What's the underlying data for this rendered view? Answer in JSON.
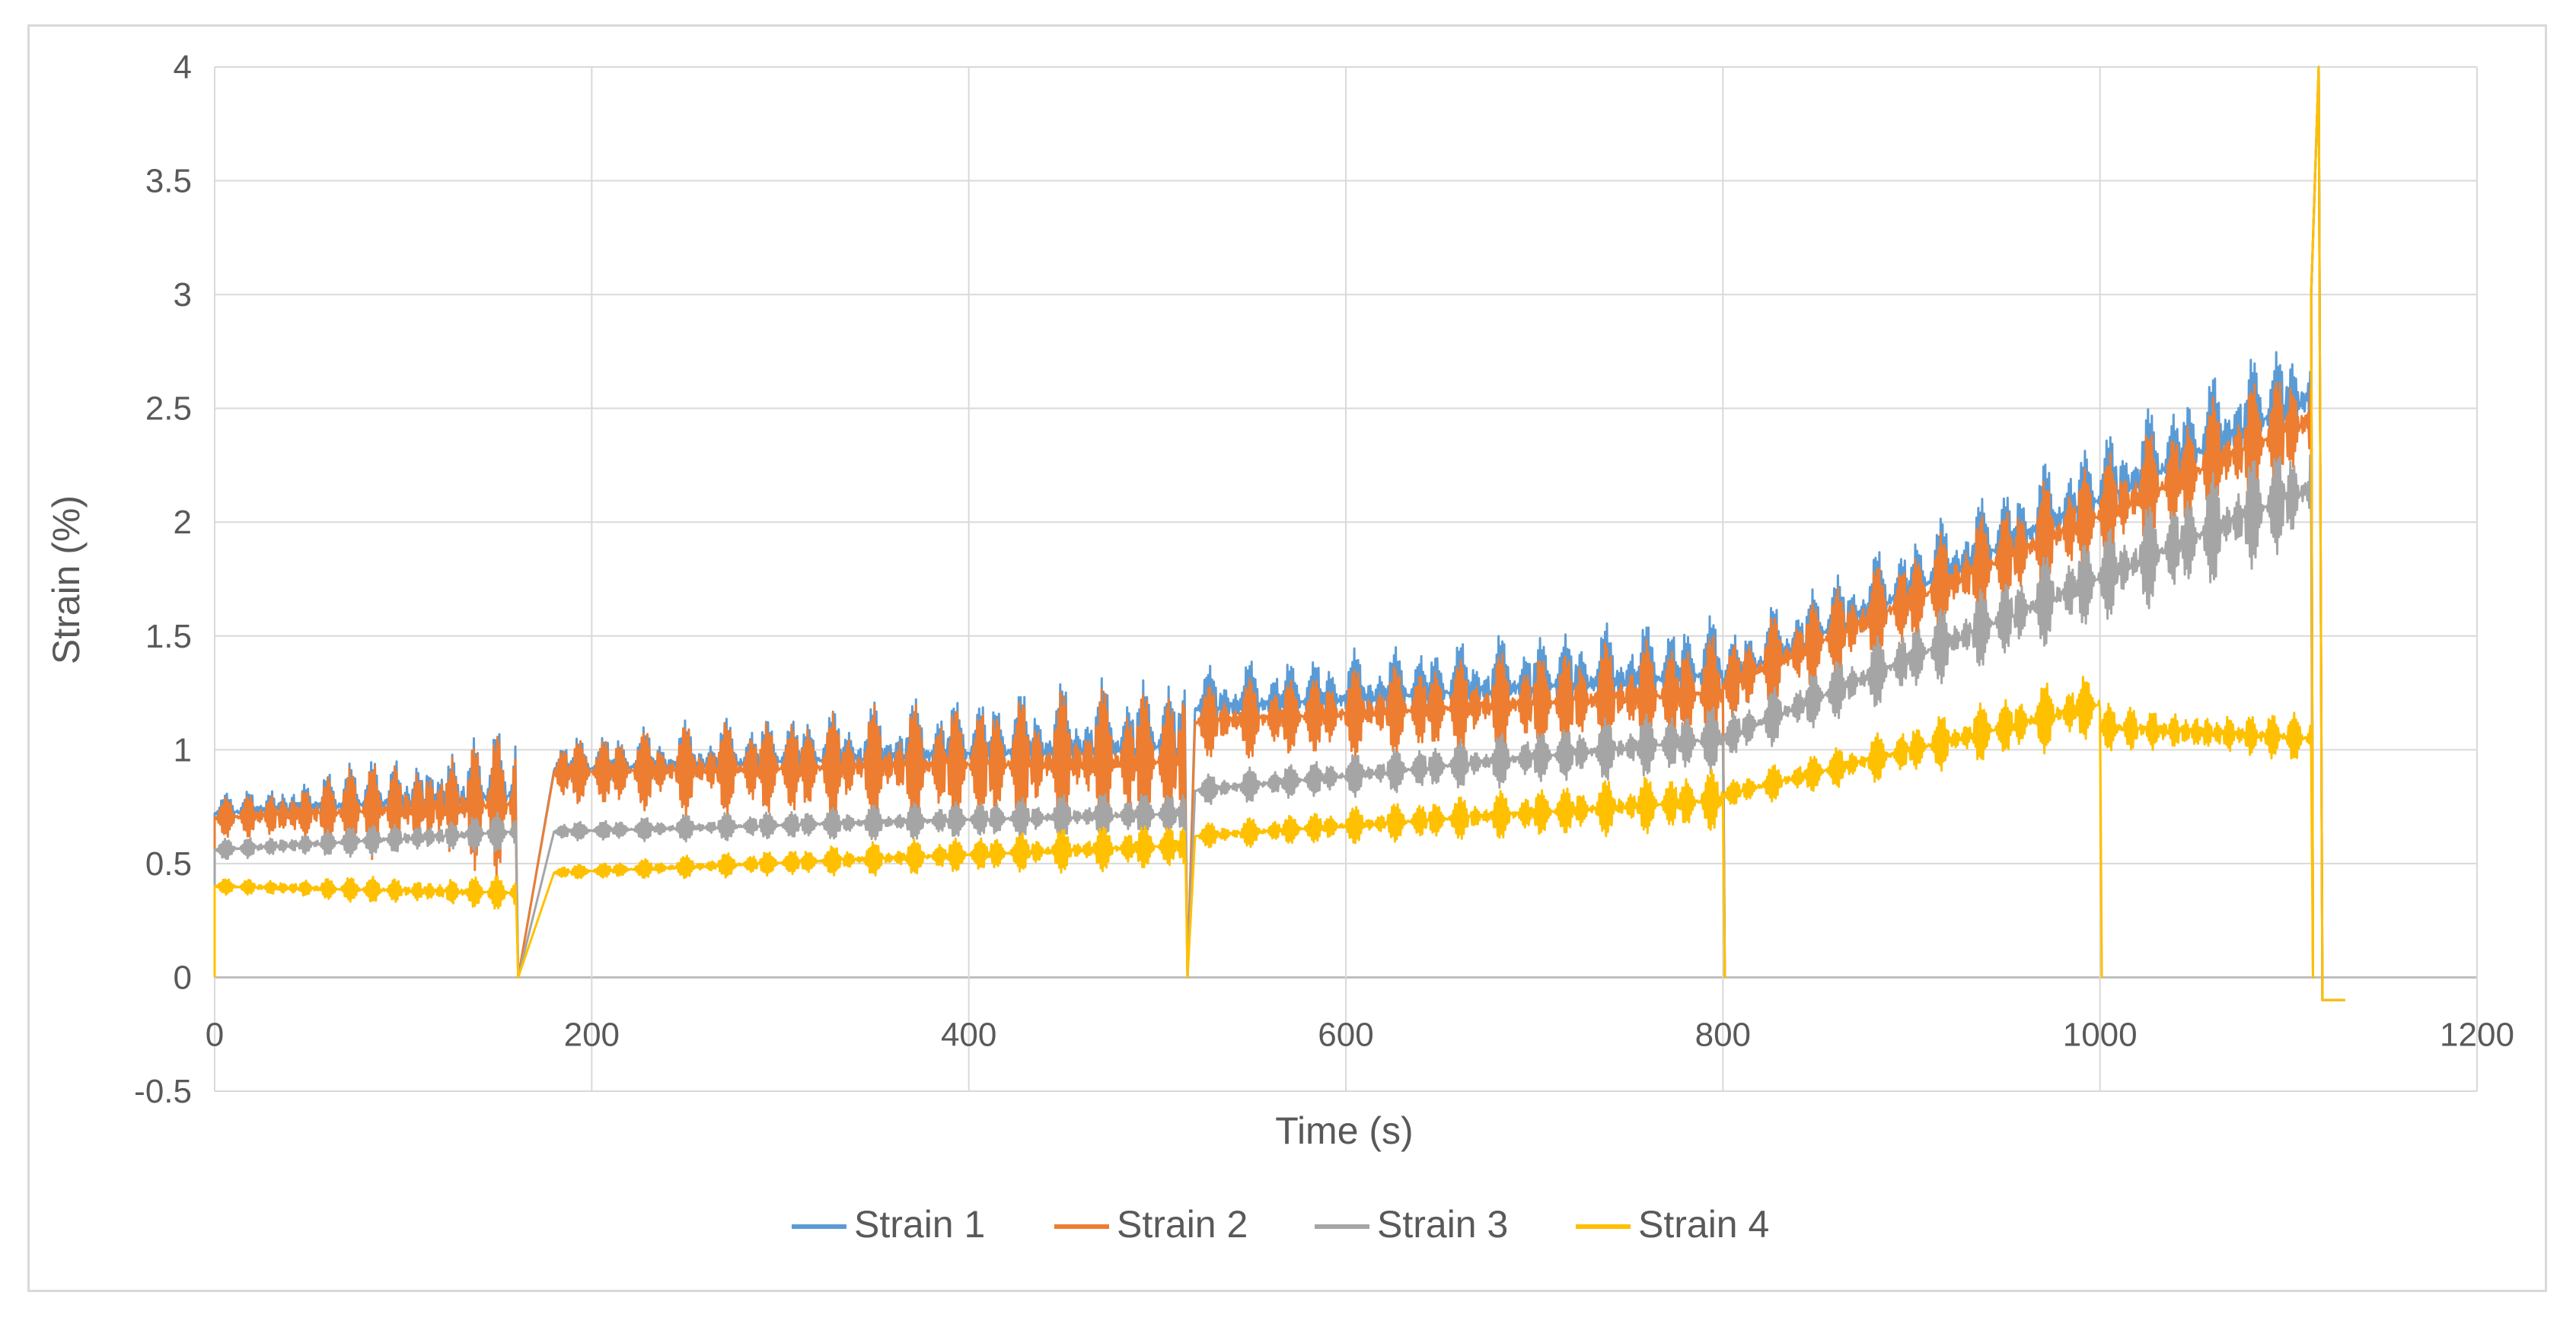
{
  "chart_data": {
    "type": "line",
    "title": "",
    "xlabel": "Time (s)",
    "ylabel": "Strain  (%)",
    "xlim": [
      0,
      1200
    ],
    "ylim": [
      -0.5,
      4
    ],
    "x_ticks": [
      "0",
      "200",
      "400",
      "600",
      "800",
      "1000",
      "1200"
    ],
    "y_ticks": [
      "-0.5",
      "0",
      "0.5",
      "1",
      "1.5",
      "2",
      "2.5",
      "3",
      "3.5",
      "4"
    ],
    "grid": true,
    "legend_position": "bottom",
    "series": [
      {
        "name": "Strain 1",
        "color": "#5b9bd5",
        "segments": [
          {
            "t": [
              0,
              160
            ],
            "mean": [
              0.72,
              0.8
            ],
            "amp": [
              0.07,
              0.28
            ],
            "period": 13
          },
          {
            "t": [
              180,
              515
            ],
            "mean": [
              0.91,
              1.02
            ],
            "amp": [
              0.14,
              0.3
            ],
            "period": 20
          },
          {
            "t": [
              520,
              800
            ],
            "mean": [
              1.18,
              1.33
            ],
            "amp": [
              0.17,
              0.25
            ],
            "period": 19
          },
          {
            "t": [
              800,
              1112
            ],
            "mean": [
              1.3,
              2.55
            ],
            "amp": [
              0.2,
              0.3
            ],
            "period": 18
          }
        ]
      },
      {
        "name": "Strain 2",
        "color": "#ed7d31",
        "segments": [
          {
            "t": [
              0,
              160
            ],
            "mean": [
              0.7,
              0.76
            ],
            "amp": [
              0.07,
              0.3
            ],
            "period": 13
          },
          {
            "t": [
              180,
              515
            ],
            "mean": [
              0.9,
              0.95
            ],
            "amp": [
              0.14,
              0.33
            ],
            "period": 20
          },
          {
            "t": [
              520,
              800
            ],
            "mean": [
              1.12,
              1.25
            ],
            "amp": [
              0.15,
              0.25
            ],
            "period": 19
          },
          {
            "t": [
              800,
              1112
            ],
            "mean": [
              1.28,
              2.45
            ],
            "amp": [
              0.18,
              0.28
            ],
            "period": 18
          }
        ]
      },
      {
        "name": "Strain 3",
        "color": "#a5a5a5",
        "segments": [
          {
            "t": [
              0,
              160
            ],
            "mean": [
              0.56,
              0.64
            ],
            "amp": [
              0.04,
              0.08
            ],
            "period": 13
          },
          {
            "t": [
              180,
              515
            ],
            "mean": [
              0.64,
              0.72
            ],
            "amp": [
              0.04,
              0.1
            ],
            "period": 20
          },
          {
            "t": [
              520,
              800
            ],
            "mean": [
              0.82,
              1.05
            ],
            "amp": [
              0.06,
              0.14
            ],
            "period": 19
          },
          {
            "t": [
              800,
              1112
            ],
            "mean": [
              1.05,
              2.15
            ],
            "amp": [
              0.1,
              0.25
            ],
            "period": 18
          }
        ]
      },
      {
        "name": "Strain 4",
        "color": "#ffc000",
        "segments": [
          {
            "t": [
              0,
              160
            ],
            "mean": [
              0.4,
              0.37
            ],
            "amp": [
              0.03,
              0.07
            ],
            "period": 13
          },
          {
            "t": [
              180,
              515
            ],
            "mean": [
              0.46,
              0.58
            ],
            "amp": [
              0.03,
              0.1
            ],
            "period": 20
          },
          {
            "t": [
              520,
              800
            ],
            "mean": [
              0.62,
              0.78
            ],
            "amp": [
              0.05,
              0.13
            ],
            "period": 19
          },
          {
            "t": [
              800,
              1000
            ],
            "mean": [
              0.8,
              1.2
            ],
            "amp": [
              0.06,
              0.15
            ],
            "period": 18
          },
          {
            "t": [
              1000,
              1112
            ],
            "mean": [
              1.1,
              1.05
            ],
            "amp": [
              0.1,
              0.1
            ],
            "period": 12
          }
        ]
      }
    ]
  }
}
